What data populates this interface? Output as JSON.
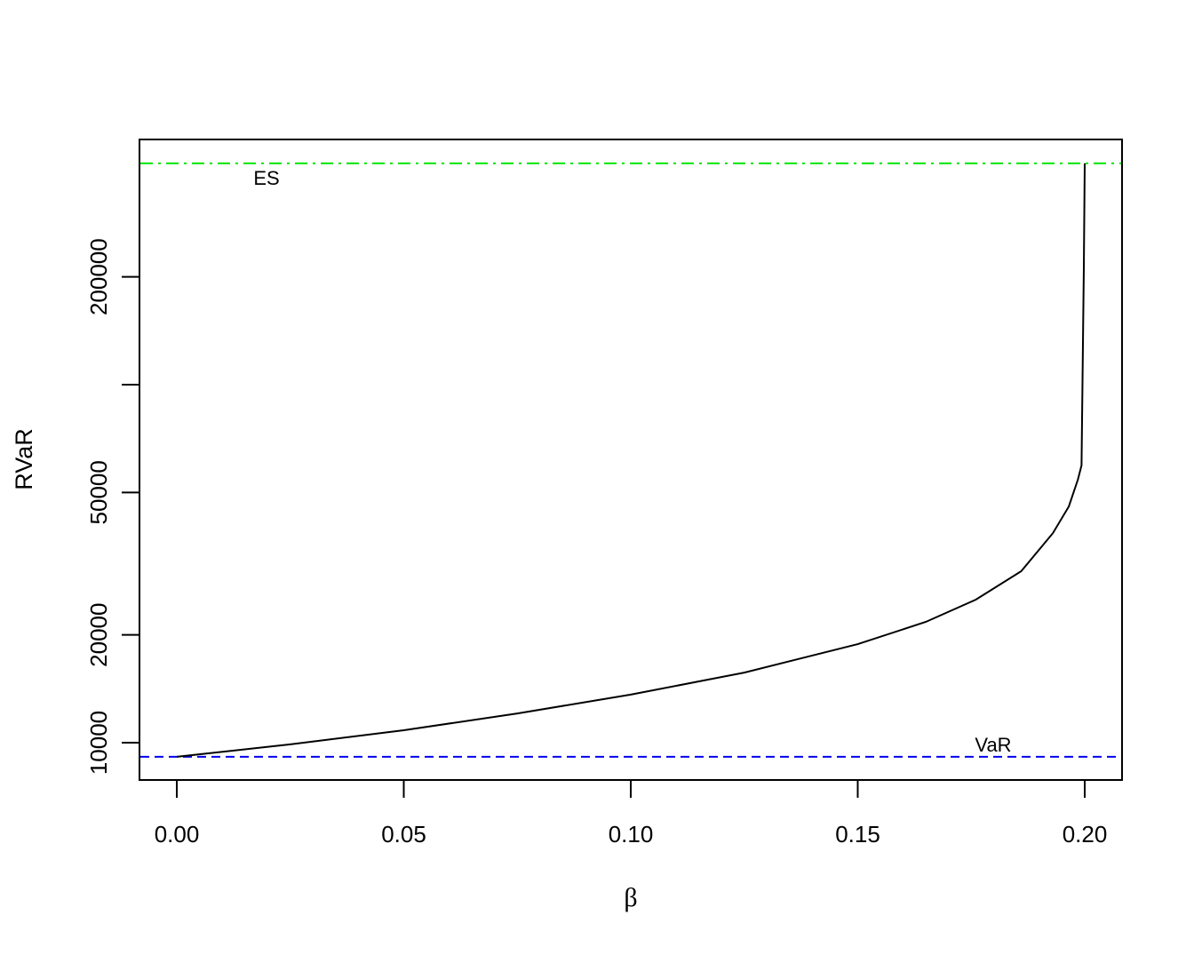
{
  "chart_data": {
    "type": "line",
    "title": "",
    "xlabel": "β",
    "ylabel": "RVaR",
    "xlim": [
      -0.008,
      0.208
    ],
    "ylim": [
      8000,
      470000
    ],
    "y_scale": "log",
    "grid": false,
    "legend": null,
    "x_ticks": [
      "0.00",
      "0.05",
      "0.10",
      "0.15",
      "0.20"
    ],
    "x_tick_values": [
      0.0,
      0.05,
      0.1,
      0.15,
      0.2
    ],
    "y_ticks": [
      "10000",
      "20000",
      "50000",
      "",
      "200000"
    ],
    "y_tick_values": [
      10000,
      20000,
      50000,
      100000,
      200000
    ],
    "series": [
      {
        "name": "RVaR",
        "color": "#000000",
        "style": "solid",
        "x": [
          0.0,
          0.025,
          0.05,
          0.075,
          0.1,
          0.125,
          0.15,
          0.165,
          0.176,
          0.186,
          0.193,
          0.1965,
          0.1985,
          0.1993,
          0.1998,
          0.2
        ],
        "y": [
          9130,
          9890,
          10830,
          12070,
          13620,
          15700,
          18840,
          21750,
          25090,
          30130,
          38500,
          45700,
          54300,
          59500,
          213000,
          415000
        ]
      }
    ],
    "reference_lines": [
      {
        "name": "ES",
        "value": 415000,
        "color": "#00E600",
        "style": "dashdot",
        "label": "ES",
        "label_x": 0.02
      },
      {
        "name": "VaR",
        "value": 9130,
        "color": "#0000EE",
        "style": "dashed",
        "label": "VaR",
        "label_x": 0.18
      }
    ],
    "annotations": [
      "ES",
      "VaR"
    ]
  }
}
